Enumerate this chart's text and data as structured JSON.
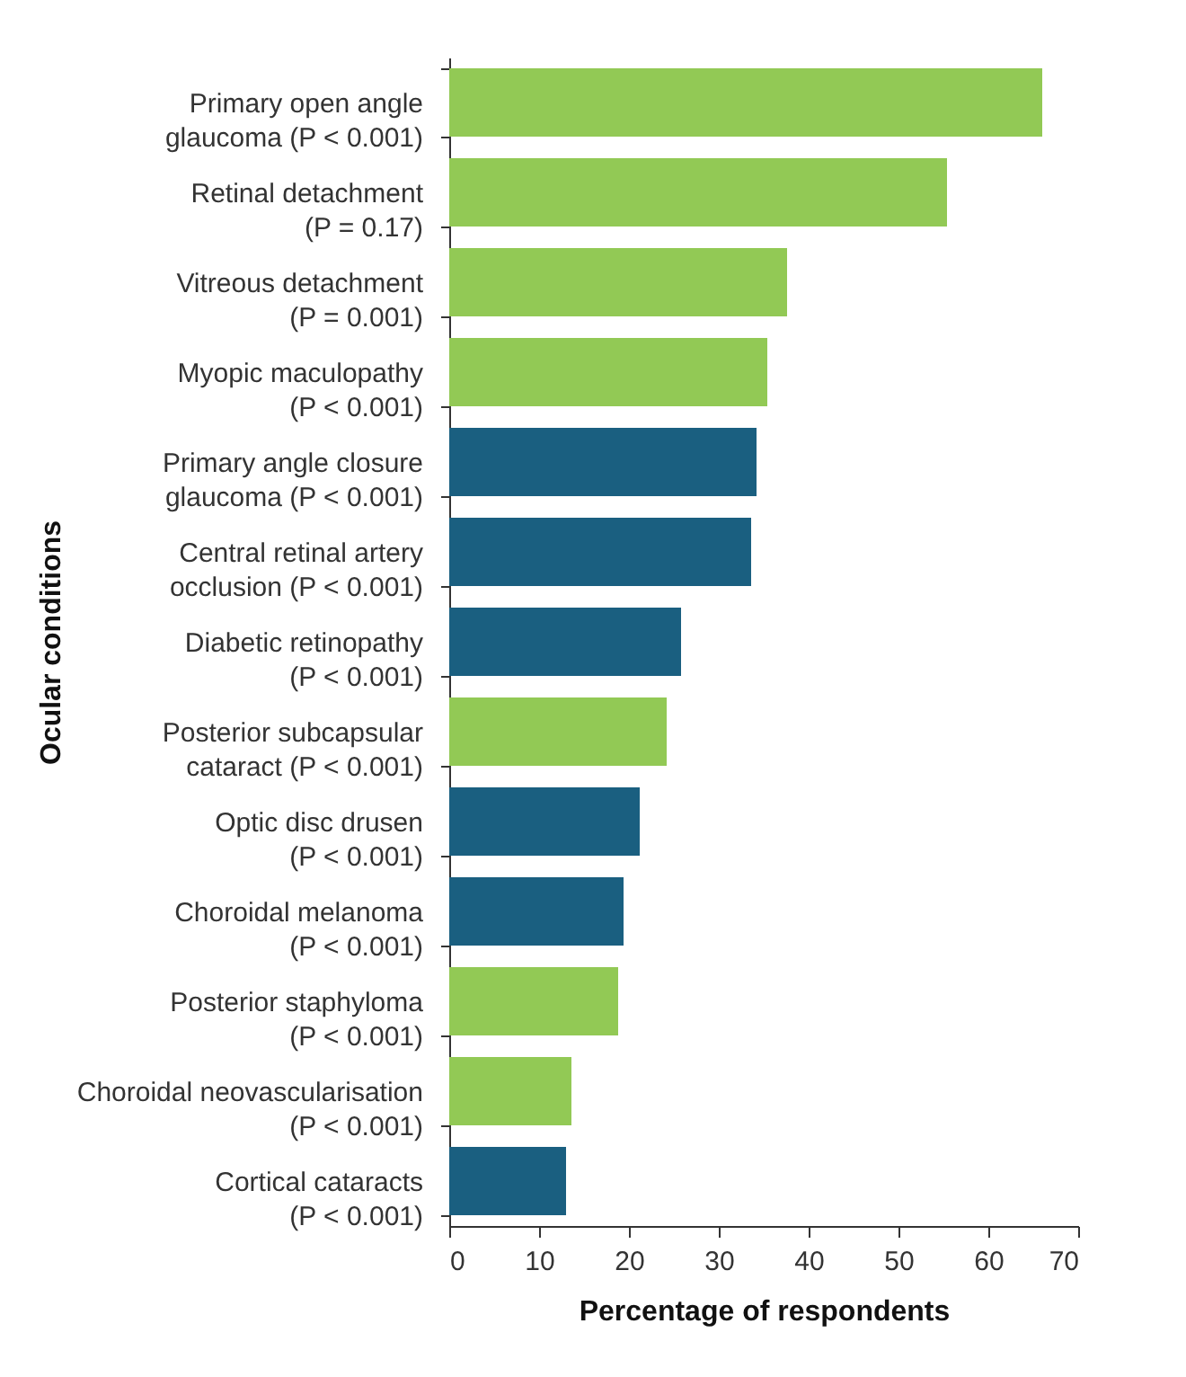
{
  "chart_data": {
    "type": "bar",
    "orientation": "horizontal",
    "xlabel": "Percentage of respondents",
    "ylabel": "Ocular conditions",
    "categories": [
      "Primary open angle\nglaucoma (P < 0.001)",
      "Retinal detachment\n(P = 0.17)",
      "Vitreous detachment\n(P = 0.001)",
      "Myopic maculopathy\n(P < 0.001)",
      "Primary angle closure\nglaucoma (P < 0.001)",
      "Central retinal artery\nocclusion (P < 0.001)",
      "Diabetic retinopathy\n(P < 0.001)",
      "Posterior subcapsular\ncataract (P < 0.001)",
      "Optic disc drusen\n(P < 0.001)",
      "Choroidal melanoma\n(P < 0.001)",
      "Posterior staphyloma\n(P < 0.001)",
      "Choroidal neovascularisation\n(P < 0.001)",
      "Cortical cataracts\n(P < 0.001)"
    ],
    "values": [
      66.0,
      55.4,
      37.6,
      35.4,
      34.2,
      33.6,
      25.8,
      24.2,
      21.2,
      19.4,
      18.8,
      13.6,
      13.0
    ],
    "colors": [
      "#92c955",
      "#92c955",
      "#92c955",
      "#92c955",
      "#1a5f80",
      "#1a5f80",
      "#1a5f80",
      "#92c955",
      "#1a5f80",
      "#1a5f80",
      "#92c955",
      "#92c955",
      "#1a5f80"
    ],
    "xlim": [
      0,
      70
    ],
    "xticks": [
      0,
      10,
      20,
      30,
      40,
      50,
      60,
      70
    ],
    "grid": false,
    "legend": false
  }
}
